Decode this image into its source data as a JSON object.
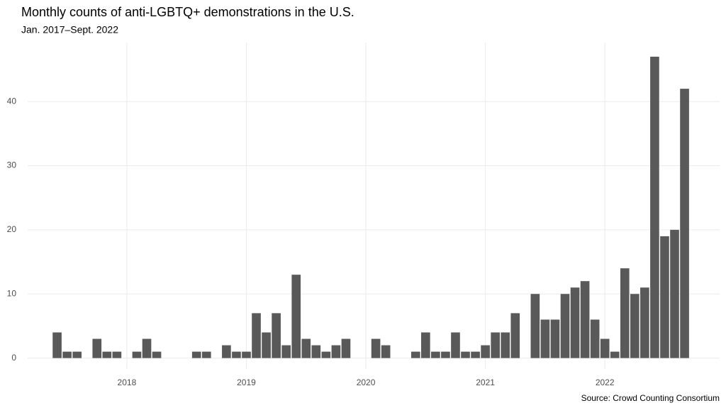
{
  "chart_data": {
    "type": "bar",
    "title": "Monthly counts of anti-LGBTQ+ demonstrations in the U.S.",
    "subtitle": "Jan. 2017–Sept. 2022",
    "source": "Source: Crowd Counting Consortium",
    "x": [
      2017,
      2017.0833,
      2017.1667,
      2017.25,
      2017.3333,
      2017.4167,
      2017.5,
      2017.5833,
      2017.6667,
      2017.75,
      2017.8333,
      2017.9167,
      2018,
      2018.0833,
      2018.1667,
      2018.25,
      2018.3333,
      2018.4167,
      2018.5,
      2018.5833,
      2018.6667,
      2018.75,
      2018.8333,
      2018.9167,
      2019,
      2019.0833,
      2019.1667,
      2019.25,
      2019.3333,
      2019.4167,
      2019.5,
      2019.5833,
      2019.6667,
      2019.75,
      2019.8333,
      2019.9167,
      2020,
      2020.0833,
      2020.1667,
      2020.25,
      2020.3333,
      2020.4167,
      2020.5,
      2020.5833,
      2020.6667,
      2020.75,
      2020.8333,
      2020.9167,
      2021,
      2021.0833,
      2021.1667,
      2021.25,
      2021.3333,
      2021.4167,
      2021.5,
      2021.5833,
      2021.6667,
      2021.75,
      2021.8333,
      2021.9167,
      2022,
      2022.0833,
      2022.1667,
      2022.25,
      2022.3333,
      2022.4167,
      2022.5,
      2022.5833,
      2022.6667
    ],
    "values": [
      0,
      0,
      0,
      0,
      0,
      4,
      1,
      1,
      0,
      3,
      1,
      1,
      0,
      1,
      3,
      1,
      0,
      0,
      0,
      1,
      1,
      0,
      2,
      1,
      1,
      7,
      4,
      7,
      2,
      13,
      3,
      2,
      1,
      2,
      3,
      0,
      0,
      3,
      2,
      0,
      0,
      1,
      4,
      1,
      1,
      4,
      1,
      1,
      2,
      4,
      4,
      7,
      0,
      10,
      6,
      6,
      10,
      11,
      12,
      6,
      3,
      1,
      14,
      10,
      11,
      47,
      19,
      20,
      42
    ],
    "color": "#595959",
    "xlim": [
      2017.17,
      2022.96
    ],
    "xticks": [
      2018,
      2019,
      2020,
      2021,
      2022
    ],
    "ylim": [
      -1.7,
      49.2
    ],
    "yticks": [
      0,
      10,
      20,
      30,
      40
    ],
    "grid": true
  }
}
